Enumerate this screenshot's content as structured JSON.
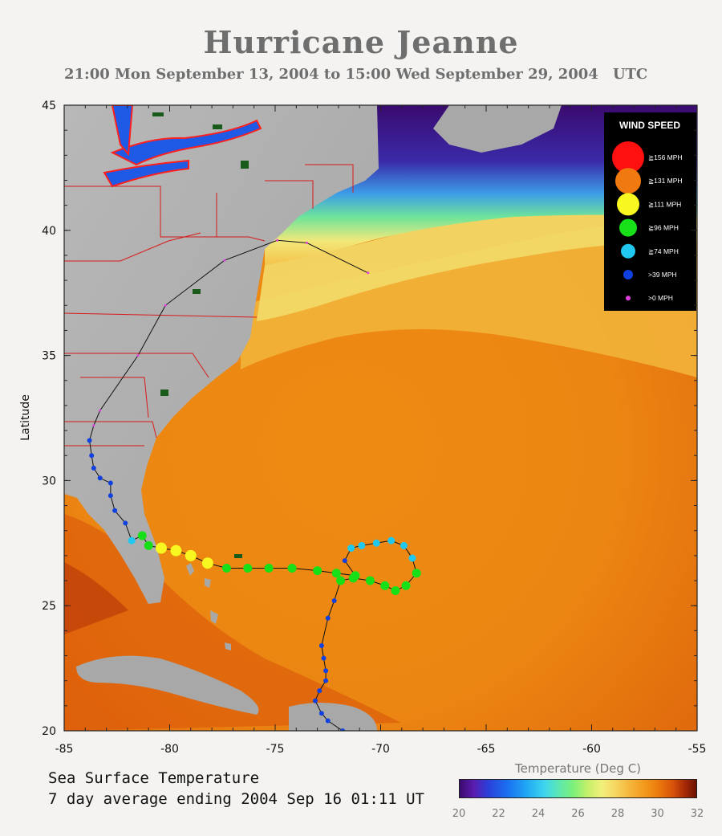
{
  "header": {
    "title": "Hurricane Jeanne",
    "subtitle": "21:00 Mon September 13, 2004 to 15:00 Wed September 29, 2004",
    "subtitle_tz": "UTC"
  },
  "axes": {
    "ylabel": "Latitude",
    "x_ticks": [
      "-85",
      "-80",
      "-75",
      "-70",
      "-65",
      "-60",
      "-55"
    ],
    "y_ticks": [
      "45",
      "40",
      "35",
      "30",
      "25",
      "20"
    ],
    "lon_range": [
      -85,
      -55
    ],
    "lat_range": [
      20,
      45
    ]
  },
  "legend": {
    "title": "WIND SPEED",
    "entries": [
      {
        "label": "≧156 MPH",
        "color": "#ff1010"
      },
      {
        "label": "≧131 MPH",
        "color": "#f07a10"
      },
      {
        "label": "≧111 MPH",
        "color": "#f8f820"
      },
      {
        "label": "≧96 MPH",
        "color": "#18e018"
      },
      {
        "label": "≧74 MPH",
        "color": "#20c8f0"
      },
      {
        "label": ">39 MPH",
        "color": "#1040e0"
      },
      {
        "label": ">0 MPH",
        "color": "#e040e0"
      }
    ]
  },
  "sst_label": {
    "line1": "Sea Surface Temperature",
    "line2": "7 day average ending 2004 Sep 16 01:11 UT"
  },
  "colorbar": {
    "title": "Temperature (Deg C)",
    "ticks": [
      "20",
      "22",
      "24",
      "26",
      "28",
      "30",
      "32"
    ]
  },
  "track": [
    {
      "lon": -71.8,
      "lat": 20.0,
      "cat": 5
    },
    {
      "lon": -72.5,
      "lat": 20.4,
      "cat": 5
    },
    {
      "lon": -72.8,
      "lat": 20.7,
      "cat": 5
    },
    {
      "lon": -73.1,
      "lat": 21.2,
      "cat": 5
    },
    {
      "lon": -72.9,
      "lat": 21.6,
      "cat": 5
    },
    {
      "lon": -72.6,
      "lat": 22.0,
      "cat": 5
    },
    {
      "lon": -72.6,
      "lat": 22.4,
      "cat": 5
    },
    {
      "lon": -72.7,
      "lat": 22.9,
      "cat": 5
    },
    {
      "lon": -72.8,
      "lat": 23.4,
      "cat": 5
    },
    {
      "lon": -72.5,
      "lat": 24.5,
      "cat": 5
    },
    {
      "lon": -72.2,
      "lat": 25.2,
      "cat": 5
    },
    {
      "lon": -71.9,
      "lat": 26.0,
      "cat": 3
    },
    {
      "lon": -71.3,
      "lat": 26.1,
      "cat": 3
    },
    {
      "lon": -70.5,
      "lat": 26.0,
      "cat": 3
    },
    {
      "lon": -69.8,
      "lat": 25.8,
      "cat": 3
    },
    {
      "lon": -69.3,
      "lat": 25.6,
      "cat": 3
    },
    {
      "lon": -68.8,
      "lat": 25.8,
      "cat": 3
    },
    {
      "lon": -68.3,
      "lat": 26.3,
      "cat": 3
    },
    {
      "lon": -68.5,
      "lat": 26.9,
      "cat": 4
    },
    {
      "lon": -68.9,
      "lat": 27.4,
      "cat": 4
    },
    {
      "lon": -69.5,
      "lat": 27.6,
      "cat": 4
    },
    {
      "lon": -70.2,
      "lat": 27.5,
      "cat": 4
    },
    {
      "lon": -70.9,
      "lat": 27.4,
      "cat": 4
    },
    {
      "lon": -71.4,
      "lat": 27.3,
      "cat": 4
    },
    {
      "lon": -71.7,
      "lat": 26.8,
      "cat": 5
    },
    {
      "lon": -71.2,
      "lat": 26.2,
      "cat": 3
    },
    {
      "lon": -72.1,
      "lat": 26.3,
      "cat": 3
    },
    {
      "lon": -73.0,
      "lat": 26.4,
      "cat": 3
    },
    {
      "lon": -74.2,
      "lat": 26.5,
      "cat": 3
    },
    {
      "lon": -75.3,
      "lat": 26.5,
      "cat": 3
    },
    {
      "lon": -76.3,
      "lat": 26.5,
      "cat": 3
    },
    {
      "lon": -77.3,
      "lat": 26.5,
      "cat": 3
    },
    {
      "lon": -78.2,
      "lat": 26.7,
      "cat": 2
    },
    {
      "lon": -79.0,
      "lat": 27.0,
      "cat": 2
    },
    {
      "lon": -79.7,
      "lat": 27.2,
      "cat": 2
    },
    {
      "lon": -80.4,
      "lat": 27.3,
      "cat": 2
    },
    {
      "lon": -81.0,
      "lat": 27.4,
      "cat": 3
    },
    {
      "lon": -81.3,
      "lat": 27.8,
      "cat": 3
    },
    {
      "lon": -81.8,
      "lat": 27.6,
      "cat": 4
    },
    {
      "lon": -82.1,
      "lat": 28.3,
      "cat": 5
    },
    {
      "lon": -82.6,
      "lat": 28.8,
      "cat": 5
    },
    {
      "lon": -82.8,
      "lat": 29.4,
      "cat": 5
    },
    {
      "lon": -82.8,
      "lat": 29.9,
      "cat": 5
    },
    {
      "lon": -83.3,
      "lat": 30.1,
      "cat": 5
    },
    {
      "lon": -83.6,
      "lat": 30.5,
      "cat": 5
    },
    {
      "lon": -83.7,
      "lat": 31.0,
      "cat": 5
    },
    {
      "lon": -83.8,
      "lat": 31.6,
      "cat": 5
    },
    {
      "lon": -83.6,
      "lat": 32.2,
      "cat": 6
    },
    {
      "lon": -83.3,
      "lat": 32.8,
      "cat": 6
    },
    {
      "lon": -81.5,
      "lat": 35.0,
      "cat": 6
    },
    {
      "lon": -80.2,
      "lat": 37.0,
      "cat": 6
    },
    {
      "lon": -77.4,
      "lat": 38.8,
      "cat": 6
    },
    {
      "lon": -74.9,
      "lat": 39.6,
      "cat": 6
    },
    {
      "lon": -73.5,
      "lat": 39.5,
      "cat": 6
    },
    {
      "lon": -70.6,
      "lat": 38.3,
      "cat": 6
    }
  ]
}
